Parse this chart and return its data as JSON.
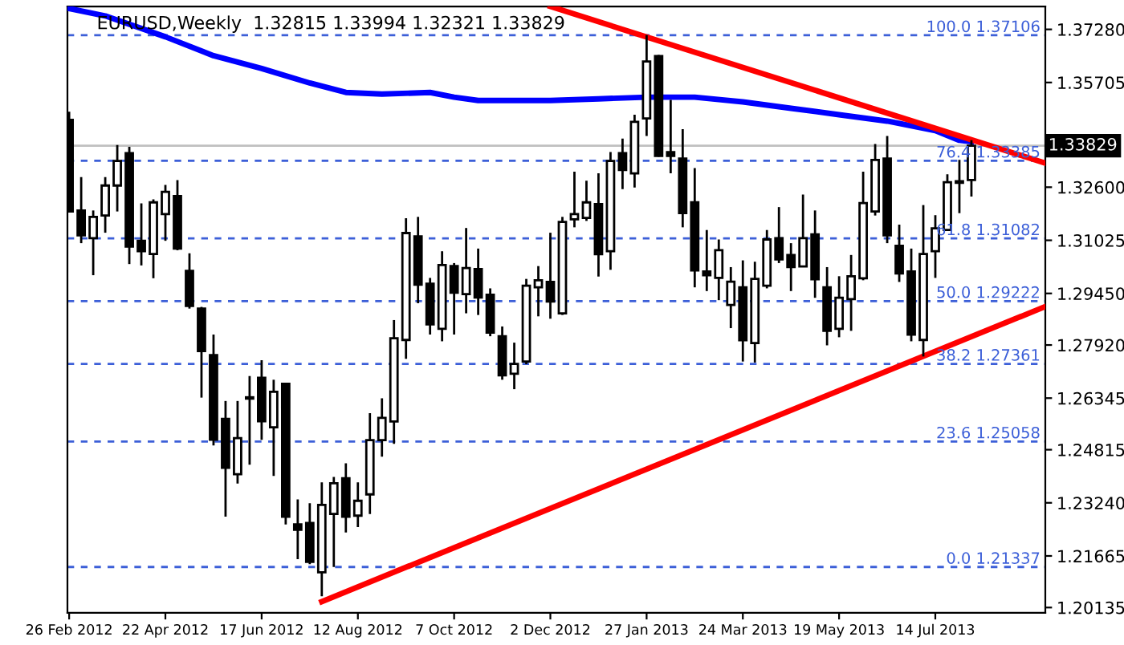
{
  "chart_data": {
    "type": "candlestick",
    "title": "EURUSD,Weekly  1.32815 1.33994 1.32321 1.33829",
    "x": [
      "2012-02-26",
      "2012-03-04",
      "2012-03-11",
      "2012-03-18",
      "2012-03-25",
      "2012-04-01",
      "2012-04-08",
      "2012-04-15",
      "2012-04-22",
      "2012-04-29",
      "2012-05-06",
      "2012-05-13",
      "2012-05-20",
      "2012-05-27",
      "2012-06-03",
      "2012-06-10",
      "2012-06-17",
      "2012-06-24",
      "2012-07-01",
      "2012-07-08",
      "2012-07-15",
      "2012-07-22",
      "2012-07-29",
      "2012-08-05",
      "2012-08-12",
      "2012-08-19",
      "2012-08-26",
      "2012-09-02",
      "2012-09-09",
      "2012-09-16",
      "2012-09-23",
      "2012-09-30",
      "2012-10-07",
      "2012-10-14",
      "2012-10-21",
      "2012-10-28",
      "2012-11-04",
      "2012-11-11",
      "2012-11-18",
      "2012-11-25",
      "2012-12-02",
      "2012-12-09",
      "2012-12-16",
      "2012-12-23",
      "2012-12-30",
      "2013-01-06",
      "2013-01-13",
      "2013-01-20",
      "2013-01-27",
      "2013-02-03",
      "2013-02-10",
      "2013-02-17",
      "2013-02-24",
      "2013-03-03",
      "2013-03-10",
      "2013-03-17",
      "2013-03-24",
      "2013-03-31",
      "2013-04-07",
      "2013-04-14",
      "2013-04-21",
      "2013-04-28",
      "2013-05-05",
      "2013-05-12",
      "2013-05-19",
      "2013-05-26",
      "2013-06-02",
      "2013-06-09",
      "2013-06-16",
      "2013-06-23",
      "2013-06-30",
      "2013-07-07",
      "2013-07-14",
      "2013-07-21",
      "2013-07-28",
      "2013-08-04"
    ],
    "ohlc": [
      [
        1.346,
        1.3484,
        1.3185,
        1.3188
      ],
      [
        1.3191,
        1.329,
        1.3094,
        1.3117
      ],
      [
        1.3109,
        1.3191,
        1.2999,
        1.3172
      ],
      [
        1.3176,
        1.329,
        1.3125,
        1.3265
      ],
      [
        1.3265,
        1.3385,
        1.3188,
        1.3338
      ],
      [
        1.3361,
        1.338,
        1.3032,
        1.3084
      ],
      [
        1.3101,
        1.3212,
        1.3028,
        1.307
      ],
      [
        1.3062,
        1.3224,
        1.299,
        1.3215
      ],
      [
        1.318,
        1.3267,
        1.3101,
        1.3246
      ],
      [
        1.3234,
        1.3281,
        1.3073,
        1.3078
      ],
      [
        1.3012,
        1.3064,
        1.29,
        1.2908
      ],
      [
        1.29,
        1.2905,
        1.2636,
        1.2774
      ],
      [
        1.2762,
        1.2823,
        1.2494,
        1.2511
      ],
      [
        1.2573,
        1.2626,
        1.2283,
        1.2428
      ],
      [
        1.2409,
        1.2626,
        1.2381,
        1.2516
      ],
      [
        1.2637,
        1.27,
        1.2437,
        1.2633
      ],
      [
        1.2695,
        1.2747,
        1.2511,
        1.2566
      ],
      [
        1.2548,
        1.2689,
        1.2404,
        1.2653
      ],
      [
        1.2677,
        1.2677,
        1.226,
        1.2283
      ],
      [
        1.226,
        1.2334,
        1.2157,
        1.2244
      ],
      [
        1.2264,
        1.2323,
        1.2142,
        1.2149
      ],
      [
        1.2118,
        1.2385,
        1.2047,
        1.2318
      ],
      [
        1.2291,
        1.2401,
        1.2134,
        1.2382
      ],
      [
        1.2397,
        1.2441,
        1.2236,
        1.2283
      ],
      [
        1.2286,
        1.2385,
        1.2252,
        1.233
      ],
      [
        1.2349,
        1.259,
        1.2291,
        1.251
      ],
      [
        1.251,
        1.2634,
        1.2461,
        1.2576
      ],
      [
        1.2565,
        1.2866,
        1.2499,
        1.2812
      ],
      [
        1.2807,
        1.3168,
        1.2751,
        1.3124
      ],
      [
        1.3114,
        1.3172,
        1.2916,
        1.2971
      ],
      [
        1.2974,
        1.2991,
        1.2823,
        1.2853
      ],
      [
        1.284,
        1.307,
        1.2803,
        1.3029
      ],
      [
        1.3026,
        1.3035,
        1.2823,
        1.2947
      ],
      [
        1.2943,
        1.3139,
        1.2886,
        1.302
      ],
      [
        1.3017,
        1.3078,
        1.2881,
        1.2933
      ],
      [
        1.2941,
        1.296,
        1.2818,
        1.2829
      ],
      [
        1.2818,
        1.2847,
        1.2689,
        1.2702
      ],
      [
        1.2707,
        1.2799,
        1.2661,
        1.2736
      ],
      [
        1.2743,
        1.2988,
        1.2735,
        1.2968
      ],
      [
        1.2963,
        1.3026,
        1.2877,
        1.2984
      ],
      [
        1.2979,
        1.3125,
        1.287,
        1.2921
      ],
      [
        1.2886,
        1.3172,
        1.2881,
        1.3157
      ],
      [
        1.3165,
        1.3306,
        1.3141,
        1.318
      ],
      [
        1.3169,
        1.3279,
        1.316,
        1.3215
      ],
      [
        1.321,
        1.3301,
        1.2995,
        1.3061
      ],
      [
        1.307,
        1.3364,
        1.3015,
        1.3338
      ],
      [
        1.3361,
        1.3404,
        1.3254,
        1.3311
      ],
      [
        1.3301,
        1.3475,
        1.3259,
        1.3454
      ],
      [
        1.3464,
        1.3711,
        1.3412,
        1.3633
      ],
      [
        1.3649,
        1.3652,
        1.335,
        1.3353
      ],
      [
        1.3364,
        1.3519,
        1.3301,
        1.3353
      ],
      [
        1.3345,
        1.3432,
        1.3141,
        1.3183
      ],
      [
        1.3215,
        1.3317,
        1.2963,
        1.3013
      ],
      [
        1.301,
        1.3133,
        1.2952,
        1.2999
      ],
      [
        1.2991,
        1.3105,
        1.2925,
        1.3073
      ],
      [
        1.2911,
        1.3023,
        1.2842,
        1.298
      ],
      [
        1.2963,
        1.3043,
        1.2743,
        1.2806
      ],
      [
        1.2798,
        1.3039,
        1.274,
        1.2988
      ],
      [
        1.2968,
        1.3133,
        1.296,
        1.3105
      ],
      [
        1.3109,
        1.3201,
        1.3035,
        1.3046
      ],
      [
        1.3059,
        1.3094,
        1.2952,
        1.3023
      ],
      [
        1.3025,
        1.3238,
        1.3023,
        1.3109
      ],
      [
        1.312,
        1.3191,
        1.2932,
        1.2987
      ],
      [
        1.2963,
        1.3023,
        1.2791,
        1.2834
      ],
      [
        1.284,
        1.2996,
        1.2815,
        1.2932
      ],
      [
        1.2928,
        1.3059,
        1.2834,
        1.2996
      ],
      [
        1.299,
        1.3306,
        1.2984,
        1.3213
      ],
      [
        1.3188,
        1.3388,
        1.3176,
        1.3341
      ],
      [
        1.3345,
        1.3412,
        1.3094,
        1.3117
      ],
      [
        1.3086,
        1.3149,
        1.2979,
        1.3004
      ],
      [
        1.301,
        1.3078,
        1.2803,
        1.2823
      ],
      [
        1.2807,
        1.3207,
        1.2758,
        1.3062
      ],
      [
        1.307,
        1.3177,
        1.2991,
        1.3138
      ],
      [
        1.3133,
        1.3298,
        1.313,
        1.3275
      ],
      [
        1.3273,
        1.3341,
        1.3183,
        1.3278
      ],
      [
        1.32815,
        1.33994,
        1.32321,
        1.33829
      ]
    ],
    "series": [
      {
        "type": "line",
        "color": "#0000ff",
        "x": [
          "2012-02-26",
          "2012-03-18",
          "2012-04-22",
          "2012-05-20",
          "2012-06-17",
          "2012-07-15",
          "2012-08-05",
          "2012-08-26",
          "2012-09-23",
          "2012-10-07",
          "2012-10-21",
          "2012-12-02",
          "2012-12-30",
          "2013-01-27",
          "2013-02-24",
          "2013-03-24",
          "2013-04-21",
          "2013-05-19",
          "2013-06-16",
          "2013-07-14",
          "2013-07-28",
          "2013-08-04"
        ],
        "values": [
          1.379,
          1.3768,
          1.3706,
          1.365,
          1.3612,
          1.3569,
          1.3541,
          1.3536,
          1.3541,
          1.3527,
          1.3517,
          1.3517,
          1.3522,
          1.3527,
          1.3527,
          1.3513,
          1.3494,
          1.3475,
          1.3456,
          1.3428,
          1.3399,
          1.3395
        ]
      },
      {
        "type": "line",
        "color": "#ff0000",
        "x": [
          "2012-12-02",
          "2013-09-15"
        ],
        "values": [
          1.3796,
          1.3333
        ]
      },
      {
        "type": "line",
        "color": "#ff0000",
        "x": [
          "2012-07-22",
          "2013-09-15"
        ],
        "values": [
          1.2031,
          1.2904
        ]
      }
    ],
    "ref_lines": [
      {
        "axis": "y",
        "value": 1.37106,
        "label": "100.0 1.37106",
        "color": "#3c5fd8",
        "line_style": "dashed"
      },
      {
        "axis": "y",
        "value": 1.33385,
        "label": "76.4 1.33385",
        "color": "#3c5fd8",
        "line_style": "dashed"
      },
      {
        "axis": "y",
        "value": 1.31082,
        "label": "61.8 1.31082",
        "color": "#3c5fd8",
        "line_style": "dashed"
      },
      {
        "axis": "y",
        "value": 1.29222,
        "label": "50.0 1.29222",
        "color": "#3c5fd8",
        "line_style": "dashed"
      },
      {
        "axis": "y",
        "value": 1.27361,
        "label": "38.2 1.27361",
        "color": "#3c5fd8",
        "line_style": "dashed"
      },
      {
        "axis": "y",
        "value": 1.25058,
        "label": "23.6 1.25058",
        "color": "#3c5fd8",
        "line_style": "dashed"
      },
      {
        "axis": "y",
        "value": 1.21337,
        "label": "0.0 1.21337",
        "color": "#3c5fd8",
        "line_style": "dashed"
      },
      {
        "axis": "y",
        "value": 1.33829,
        "label": "1.33829",
        "color": "#c0c0c0",
        "line_style": "solid"
      }
    ],
    "xlim": [
      "2012-02-25",
      "2013-09-16"
    ],
    "ylim": [
      1.1998,
      1.3796
    ],
    "xticks": [
      {
        "value": "2012-02-26",
        "label": "26 Feb 2012"
      },
      {
        "value": "2012-04-22",
        "label": "22 Apr 2012"
      },
      {
        "value": "2012-06-17",
        "label": "17 Jun 2012"
      },
      {
        "value": "2012-08-12",
        "label": "12 Aug 2012"
      },
      {
        "value": "2012-10-07",
        "label": "7 Oct 2012"
      },
      {
        "value": "2012-12-02",
        "label": "2 Dec 2012"
      },
      {
        "value": "2013-01-27",
        "label": "27 Jan 2013"
      },
      {
        "value": "2013-03-24",
        "label": "24 Mar 2013"
      },
      {
        "value": "2013-05-19",
        "label": "19 May 2013"
      },
      {
        "value": "2013-07-14",
        "label": "14 Jul 2013"
      }
    ],
    "yticks": [
      {
        "value": 1.3728,
        "label": "1.37280"
      },
      {
        "value": 1.35705,
        "label": "1.35705"
      },
      {
        "value": 1.3413,
        "label": null
      },
      {
        "value": 1.326,
        "label": "1.32600"
      },
      {
        "value": 1.31025,
        "label": "1.31025"
      },
      {
        "value": 1.2945,
        "label": "1.29450"
      },
      {
        "value": 1.2792,
        "label": "1.27920"
      },
      {
        "value": 1.26345,
        "label": "1.26345"
      },
      {
        "value": 1.24815,
        "label": "1.24815"
      },
      {
        "value": 1.2324,
        "label": "1.23240"
      },
      {
        "value": 1.21665,
        "label": "1.21665"
      },
      {
        "value": 1.20135,
        "label": "1.20135"
      }
    ]
  }
}
